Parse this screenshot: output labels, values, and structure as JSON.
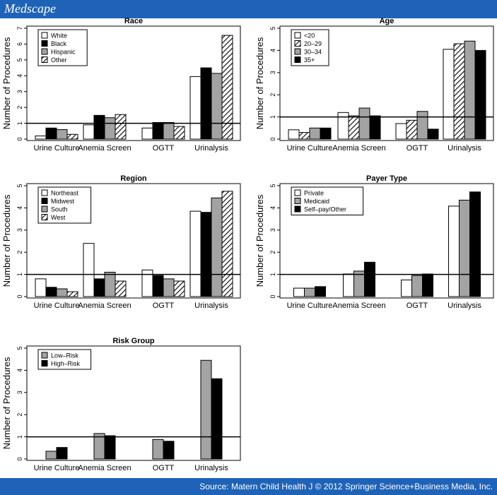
{
  "header": {
    "brand": "Medscape"
  },
  "footer": {
    "source": "Source: Matern Child Health J © 2012 Springer Science+Business Media, Inc."
  },
  "chart_data": [
    {
      "type": "bar",
      "title": "Race",
      "ylabel": "Number of Procedures",
      "ylim": [
        0,
        7
      ],
      "yticks": [
        0,
        1,
        2,
        3,
        4,
        5,
        6,
        7
      ],
      "reference_line": 1,
      "categories": [
        "Urine Culture",
        "Anemia Screen",
        "OGTT",
        "Urinalysis"
      ],
      "series": [
        {
          "name": "White",
          "fill": "white",
          "values": [
            0.2,
            0.9,
            0.7,
            3.95
          ]
        },
        {
          "name": "Black",
          "fill": "black",
          "values": [
            0.7,
            1.5,
            1.05,
            4.5
          ]
        },
        {
          "name": "Hispanic",
          "fill": "gray",
          "values": [
            0.6,
            1.35,
            1.05,
            4.15
          ]
        },
        {
          "name": "Other",
          "fill": "hatch",
          "values": [
            0.3,
            1.55,
            0.8,
            6.55
          ]
        }
      ]
    },
    {
      "type": "bar",
      "title": "Age",
      "ylabel": "Number of Procedures",
      "ylim": [
        0,
        5
      ],
      "yticks": [
        0,
        1,
        2,
        3,
        4,
        5
      ],
      "reference_line": 1,
      "categories": [
        "Urine Culture",
        "Anemia Screen",
        "OGTT",
        "Urinalysis"
      ],
      "series": [
        {
          "name": "<20",
          "fill": "white",
          "values": [
            0.42,
            1.2,
            0.7,
            4.05
          ]
        },
        {
          "name": "20–29",
          "fill": "hatch",
          "values": [
            0.3,
            1.05,
            0.85,
            4.3
          ]
        },
        {
          "name": "30–34",
          "fill": "gray",
          "values": [
            0.5,
            1.4,
            1.25,
            4.42
          ]
        },
        {
          "name": "35+",
          "fill": "black",
          "values": [
            0.5,
            1.05,
            0.45,
            4.0
          ]
        }
      ]
    },
    {
      "type": "bar",
      "title": "Region",
      "ylabel": "Number of Procedures",
      "ylim": [
        0,
        5
      ],
      "yticks": [
        0,
        1,
        2,
        3,
        4,
        5
      ],
      "reference_line": 1,
      "categories": [
        "Urine Culture",
        "Anemia Screen",
        "OGTT",
        "Urinalysis"
      ],
      "series": [
        {
          "name": "Northeast",
          "fill": "white",
          "values": [
            0.8,
            2.4,
            1.2,
            3.85
          ]
        },
        {
          "name": "Midwest",
          "fill": "black",
          "values": [
            0.42,
            0.8,
            0.95,
            3.8
          ]
        },
        {
          "name": "South",
          "fill": "gray",
          "values": [
            0.35,
            1.1,
            0.8,
            4.45
          ]
        },
        {
          "name": "West",
          "fill": "hatch",
          "values": [
            0.22,
            0.7,
            0.7,
            4.75
          ]
        }
      ]
    },
    {
      "type": "bar",
      "title": "Payer Type",
      "ylabel": "Number of Procedures",
      "ylim": [
        0,
        5
      ],
      "yticks": [
        0,
        1,
        2,
        3,
        4,
        5
      ],
      "reference_line": 1,
      "categories": [
        "Urine Culture",
        "Anemia Screen",
        "OGTT",
        "Urinalysis"
      ],
      "series": [
        {
          "name": "Private",
          "fill": "white",
          "values": [
            0.38,
            1.02,
            0.75,
            4.08
          ]
        },
        {
          "name": "Medicaid",
          "fill": "gray",
          "values": [
            0.38,
            1.15,
            0.95,
            4.35
          ]
        },
        {
          "name": "Self–pay/Other",
          "fill": "black",
          "values": [
            0.45,
            1.55,
            1.02,
            4.72
          ]
        }
      ]
    },
    {
      "type": "bar",
      "title": "Risk Group",
      "ylabel": "Number of Procedures",
      "ylim": [
        0,
        5
      ],
      "yticks": [
        0,
        1,
        2,
        3,
        4,
        5
      ],
      "reference_line": 1,
      "categories": [
        "Urine Culture",
        "Anemia Screen",
        "OGTT",
        "Urinalysis"
      ],
      "series": [
        {
          "name": "Low–Risk",
          "fill": "gray",
          "values": [
            0.35,
            1.15,
            0.88,
            4.45
          ]
        },
        {
          "name": "High–Risk",
          "fill": "black",
          "values": [
            0.52,
            1.05,
            0.8,
            3.62
          ]
        }
      ]
    }
  ]
}
